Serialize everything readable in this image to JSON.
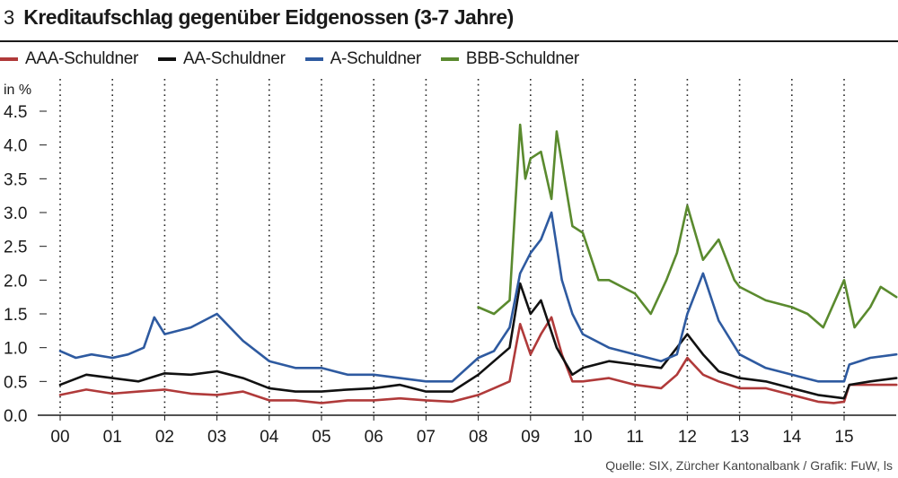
{
  "header": {
    "number": "3",
    "title": "Kreditaufschlag gegenüber Eidgenossen (3-7 Jahre)"
  },
  "source": "Quelle: SIX, Zürcher Kantonalbank / Grafik: FuW, ls",
  "chart_data": {
    "type": "line",
    "title": "Kreditaufschlag gegenüber Eidgenossen (3-7 Jahre)",
    "ylabel": "in %",
    "xlabel": "",
    "ylim": [
      0,
      4.5
    ],
    "xlim": [
      2000,
      2016
    ],
    "y_ticks": [
      0.0,
      0.5,
      1.0,
      1.5,
      2.0,
      2.5,
      3.0,
      3.5,
      4.0,
      4.5
    ],
    "y_tick_labels": [
      "0.0",
      "0.5",
      "1.0",
      "1.5",
      "2.0",
      "2.5",
      "3.0",
      "3.5",
      "4.0",
      "4.5"
    ],
    "x_ticks": [
      2000,
      2001,
      2002,
      2003,
      2004,
      2005,
      2006,
      2007,
      2008,
      2009,
      2010,
      2011,
      2012,
      2013,
      2014,
      2015
    ],
    "x_tick_labels": [
      "00",
      "01",
      "02",
      "03",
      "04",
      "05",
      "06",
      "07",
      "08",
      "09",
      "10",
      "11",
      "12",
      "13",
      "14",
      "15"
    ],
    "grid": "vertical dotted",
    "legend_position": "top-left",
    "colors": {
      "AAA": "#b03a3a",
      "AA": "#111111",
      "A": "#2e5aa0",
      "BBB": "#5a8a2e"
    },
    "series": [
      {
        "name": "AAA-Schuldner",
        "color": "#b03a3a",
        "x": [
          2000.0,
          2000.5,
          2001.0,
          2001.5,
          2002.0,
          2002.5,
          2003.0,
          2003.5,
          2004.0,
          2004.5,
          2005.0,
          2005.5,
          2006.0,
          2006.5,
          2007.0,
          2007.5,
          2008.0,
          2008.3,
          2008.6,
          2008.8,
          2009.0,
          2009.2,
          2009.4,
          2009.6,
          2009.8,
          2010.0,
          2010.5,
          2011.0,
          2011.5,
          2011.8,
          2012.0,
          2012.3,
          2012.6,
          2013.0,
          2013.5,
          2014.0,
          2014.5,
          2014.8,
          2015.0,
          2015.1,
          2015.5,
          2016.0
        ],
        "values": [
          0.3,
          0.38,
          0.32,
          0.35,
          0.38,
          0.32,
          0.3,
          0.35,
          0.22,
          0.22,
          0.18,
          0.22,
          0.22,
          0.25,
          0.22,
          0.2,
          0.3,
          0.4,
          0.5,
          1.35,
          0.9,
          1.2,
          1.45,
          0.9,
          0.5,
          0.5,
          0.55,
          0.45,
          0.4,
          0.6,
          0.85,
          0.6,
          0.5,
          0.4,
          0.4,
          0.3,
          0.2,
          0.18,
          0.2,
          0.45,
          0.45,
          0.45
        ]
      },
      {
        "name": "AA-Schuldner",
        "color": "#111111",
        "x": [
          2000.0,
          2000.5,
          2001.0,
          2001.5,
          2002.0,
          2002.5,
          2003.0,
          2003.5,
          2004.0,
          2004.5,
          2005.0,
          2005.5,
          2006.0,
          2006.5,
          2007.0,
          2007.5,
          2008.0,
          2008.3,
          2008.6,
          2008.8,
          2009.0,
          2009.2,
          2009.5,
          2009.8,
          2010.0,
          2010.5,
          2011.0,
          2011.5,
          2012.0,
          2012.3,
          2012.6,
          2013.0,
          2013.5,
          2014.0,
          2014.5,
          2015.0,
          2015.1,
          2015.5,
          2016.0
        ],
        "values": [
          0.45,
          0.6,
          0.55,
          0.5,
          0.62,
          0.6,
          0.65,
          0.55,
          0.4,
          0.35,
          0.35,
          0.38,
          0.4,
          0.45,
          0.35,
          0.35,
          0.6,
          0.8,
          1.0,
          1.95,
          1.5,
          1.7,
          1.0,
          0.6,
          0.7,
          0.8,
          0.75,
          0.7,
          1.2,
          0.9,
          0.65,
          0.55,
          0.5,
          0.4,
          0.3,
          0.25,
          0.45,
          0.5,
          0.55
        ]
      },
      {
        "name": "A-Schuldner",
        "color": "#2e5aa0",
        "x": [
          2000.0,
          2000.3,
          2000.6,
          2001.0,
          2001.3,
          2001.6,
          2001.8,
          2002.0,
          2002.5,
          2003.0,
          2003.5,
          2004.0,
          2004.5,
          2005.0,
          2005.5,
          2006.0,
          2006.5,
          2007.0,
          2007.5,
          2008.0,
          2008.3,
          2008.6,
          2008.8,
          2009.0,
          2009.2,
          2009.4,
          2009.6,
          2009.8,
          2010.0,
          2010.5,
          2011.0,
          2011.5,
          2011.8,
          2012.0,
          2012.3,
          2012.6,
          2013.0,
          2013.5,
          2014.0,
          2014.5,
          2014.8,
          2015.0,
          2015.1,
          2015.5,
          2016.0
        ],
        "values": [
          0.95,
          0.85,
          0.9,
          0.85,
          0.9,
          1.0,
          1.45,
          1.2,
          1.3,
          1.5,
          1.1,
          0.8,
          0.7,
          0.7,
          0.6,
          0.6,
          0.55,
          0.5,
          0.5,
          0.85,
          0.95,
          1.3,
          2.1,
          2.4,
          2.6,
          3.0,
          2.0,
          1.5,
          1.2,
          1.0,
          0.9,
          0.8,
          0.9,
          1.5,
          2.1,
          1.4,
          0.9,
          0.7,
          0.6,
          0.5,
          0.5,
          0.5,
          0.75,
          0.85,
          0.9
        ]
      },
      {
        "name": "BBB-Schuldner",
        "color": "#5a8a2e",
        "x": [
          2008.0,
          2008.3,
          2008.6,
          2008.8,
          2008.9,
          2009.0,
          2009.2,
          2009.4,
          2009.5,
          2009.8,
          2010.0,
          2010.3,
          2010.5,
          2011.0,
          2011.3,
          2011.6,
          2011.8,
          2012.0,
          2012.3,
          2012.6,
          2012.9,
          2013.0,
          2013.5,
          2014.0,
          2014.3,
          2014.6,
          2015.0,
          2015.2,
          2015.5,
          2015.7,
          2016.0
        ],
        "values": [
          1.6,
          1.5,
          1.7,
          4.3,
          3.5,
          3.8,
          3.9,
          3.2,
          4.2,
          2.8,
          2.7,
          2.0,
          2.0,
          1.8,
          1.5,
          2.0,
          2.4,
          3.1,
          2.3,
          2.6,
          2.0,
          1.9,
          1.7,
          1.6,
          1.5,
          1.3,
          2.0,
          1.3,
          1.6,
          1.9,
          1.75
        ]
      }
    ]
  }
}
